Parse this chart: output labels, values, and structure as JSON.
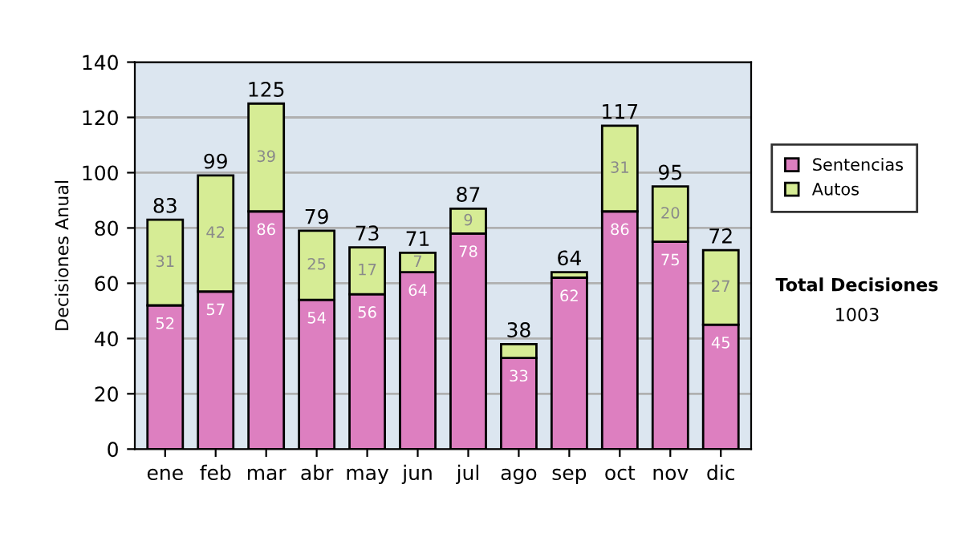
{
  "chart_data": {
    "type": "bar",
    "stacked": true,
    "ylabel": "Decisiones Anual",
    "categories": [
      "ene",
      "feb",
      "mar",
      "abr",
      "may",
      "jun",
      "jul",
      "ago",
      "sep",
      "oct",
      "nov",
      "dic"
    ],
    "series": [
      {
        "name": "Sentencias",
        "color": "#dd7fc0",
        "values": [
          52,
          57,
          86,
          54,
          56,
          64,
          78,
          33,
          62,
          86,
          75,
          45
        ],
        "value_labels": [
          "52",
          "57",
          "86",
          "54",
          "56",
          "64",
          "78",
          "33",
          "62",
          "86",
          "75",
          "45"
        ]
      },
      {
        "name": "Autos",
        "color": "#d6ec95",
        "values": [
          31,
          42,
          39,
          25,
          17,
          7,
          9,
          5,
          2,
          31,
          20,
          27
        ],
        "value_labels": [
          "31",
          "42",
          "39",
          "25",
          "17",
          "7",
          "9",
          null,
          null,
          "31",
          "20",
          "27"
        ]
      }
    ],
    "totals": [
      "83",
      "99",
      "125",
      "79",
      "73",
      "71",
      "87",
      "38",
      "64",
      "117",
      "95",
      "72"
    ],
    "ylim": [
      0,
      140
    ],
    "yticks": [
      0,
      20,
      40,
      60,
      80,
      100,
      120,
      140
    ],
    "grid": "y",
    "legend": "right",
    "annotations": [
      "Total Decisiones",
      "1003"
    ]
  }
}
